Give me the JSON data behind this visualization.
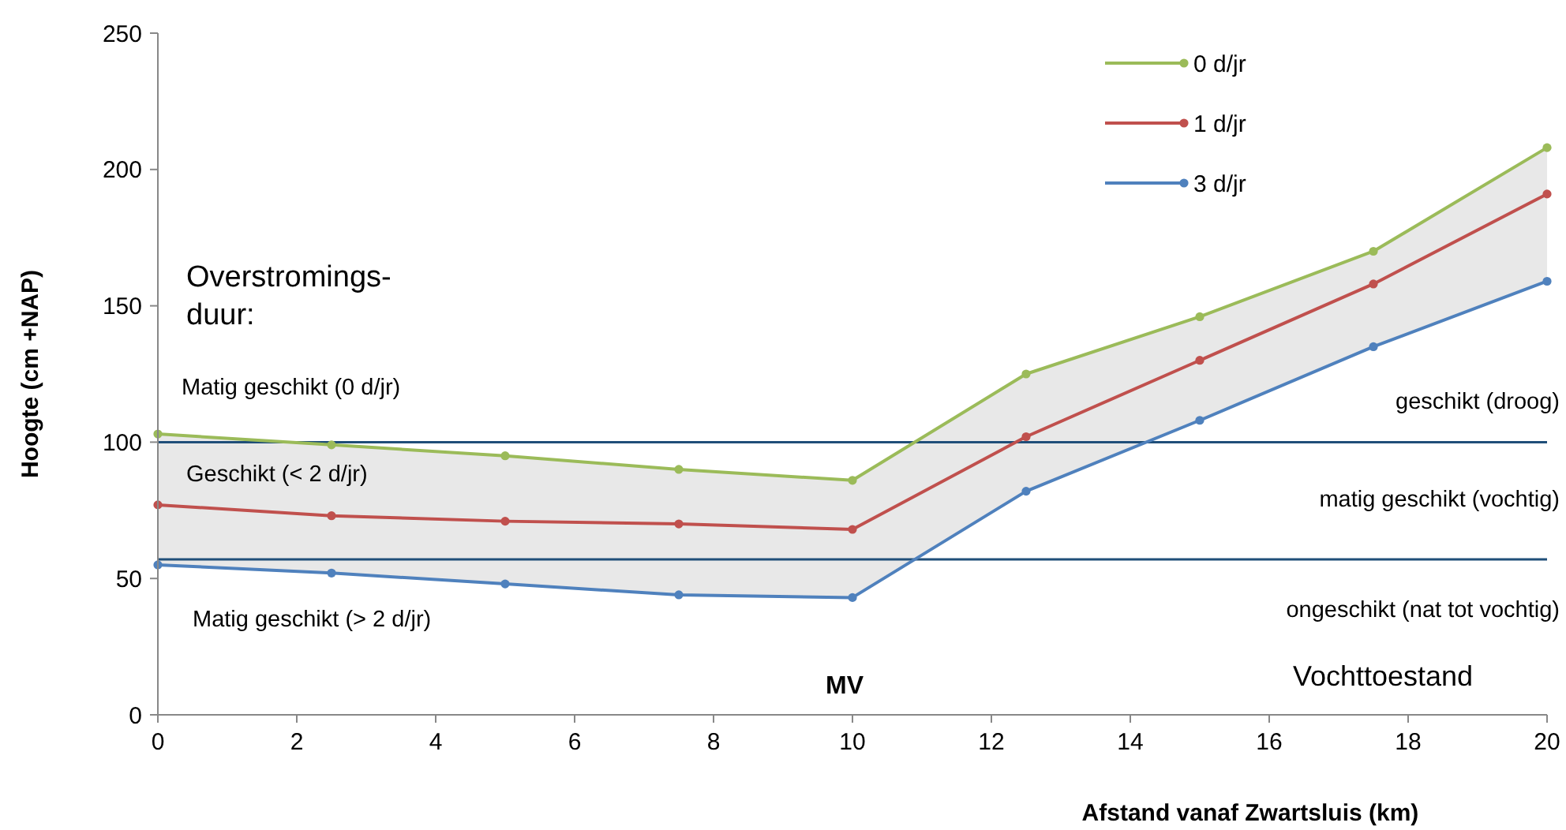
{
  "chart_data": {
    "type": "line",
    "xlabel": "Afstand vanaf Zwartsluis (km)",
    "ylabel": "Hoogte (cm +NAP)",
    "x": [
      0,
      2.5,
      5,
      7.5,
      10,
      12.5,
      15,
      17.5,
      20
    ],
    "series": [
      {
        "name": "0 d/jr",
        "color": "#9bbb59",
        "values": [
          103,
          99,
          95,
          90,
          86,
          125,
          146,
          170,
          208
        ]
      },
      {
        "name": "1 d/jr",
        "color": "#c0504d",
        "values": [
          77,
          73,
          71,
          70,
          68,
          102,
          130,
          158,
          191
        ],
        "lower": [
          55,
          52,
          48,
          44,
          43,
          82,
          108,
          135,
          159
        ],
        "upper": [
          103,
          99,
          95,
          90,
          86,
          125,
          146,
          170,
          208
        ]
      },
      {
        "name": "3 d/jr",
        "color": "#4f81bd",
        "values": [
          55,
          52,
          48,
          44,
          43,
          82,
          108,
          135,
          159
        ]
      }
    ],
    "xlim": [
      0,
      20
    ],
    "xticks": [
      0,
      2,
      4,
      6,
      8,
      10,
      12,
      14,
      16,
      18,
      20
    ],
    "ylim": [
      0,
      250
    ],
    "yticks": [
      0,
      50,
      100,
      150,
      200,
      250
    ],
    "ref_lines": [
      {
        "axis": "y",
        "value": 100,
        "color": "#1f4e79"
      },
      {
        "axis": "y",
        "value": 57,
        "color": "#1f4e79"
      }
    ],
    "annotations": [
      "Overstromings-\nduur:",
      "Matig geschikt (0 d/jr)",
      "Geschikt (< 2 d/jr)",
      "Matig geschikt (> 2 d/jr)",
      "geschikt (droog)",
      "matig geschikt (vochtig)",
      "ongeschikt (nat tot vochtig)",
      "MV",
      "Vochttoestand"
    ],
    "legend": "top right",
    "marker": "circle",
    "line_style": "solid",
    "grid": false
  }
}
